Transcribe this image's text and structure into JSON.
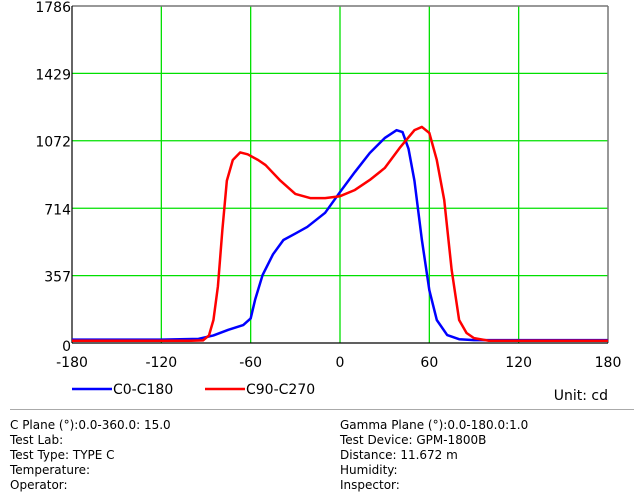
{
  "chart_data": {
    "type": "line",
    "title": "",
    "xlabel": "",
    "ylabel": "",
    "xlim": [
      -180,
      180
    ],
    "ylim": [
      0,
      1786
    ],
    "x_ticks": [
      -180,
      -120,
      -60,
      0,
      60,
      120,
      180
    ],
    "y_ticks": [
      0,
      357,
      714,
      1072,
      1429,
      1786
    ],
    "grid": true,
    "unit_label": "Unit: cd",
    "legend_position": "bottom-left",
    "series": [
      {
        "name": "C0-C180",
        "color": "#0000ff",
        "points": [
          [
            -180,
            18
          ],
          [
            -120,
            18
          ],
          [
            -95,
            22
          ],
          [
            -85,
            40
          ],
          [
            -75,
            70
          ],
          [
            -65,
            95
          ],
          [
            -60,
            130
          ],
          [
            -57,
            230
          ],
          [
            -52,
            360
          ],
          [
            -45,
            470
          ],
          [
            -38,
            546
          ],
          [
            -30,
            580
          ],
          [
            -22,
            615
          ],
          [
            -10,
            690
          ],
          [
            0,
            800
          ],
          [
            10,
            906
          ],
          [
            20,
            1007
          ],
          [
            30,
            1086
          ],
          [
            38,
            1128
          ],
          [
            42,
            1118
          ],
          [
            46,
            1030
          ],
          [
            50,
            860
          ],
          [
            55,
            546
          ],
          [
            60,
            280
          ],
          [
            65,
            122
          ],
          [
            72,
            42
          ],
          [
            80,
            20
          ],
          [
            90,
            15
          ],
          [
            180,
            15
          ]
        ]
      },
      {
        "name": "C90-C270",
        "color": "#ff0000",
        "points": [
          [
            -180,
            12
          ],
          [
            -100,
            12
          ],
          [
            -92,
            14
          ],
          [
            -88,
            40
          ],
          [
            -85,
            122
          ],
          [
            -82,
            300
          ],
          [
            -79,
            600
          ],
          [
            -76,
            860
          ],
          [
            -72,
            970
          ],
          [
            -67,
            1010
          ],
          [
            -62,
            1000
          ],
          [
            -55,
            970
          ],
          [
            -50,
            943
          ],
          [
            -40,
            860
          ],
          [
            -30,
            790
          ],
          [
            -20,
            768
          ],
          [
            -10,
            768
          ],
          [
            0,
            778
          ],
          [
            10,
            811
          ],
          [
            20,
            864
          ],
          [
            30,
            927
          ],
          [
            40,
            1033
          ],
          [
            50,
            1128
          ],
          [
            55,
            1145
          ],
          [
            60,
            1113
          ],
          [
            65,
            970
          ],
          [
            70,
            758
          ],
          [
            75,
            387
          ],
          [
            80,
            122
          ],
          [
            85,
            53
          ],
          [
            90,
            26
          ],
          [
            100,
            12
          ],
          [
            180,
            12
          ]
        ]
      }
    ]
  },
  "info": {
    "c_plane": "C Plane (°):0.0-360.0: 15.0",
    "gamma_plane": "Gamma Plane (°):0.0-180.0:1.0",
    "test_lab": "Test Lab:",
    "test_device": "Test Device: GPM-1800B",
    "test_type": "Test Type: TYPE C",
    "distance": "Distance: 11.672 m",
    "temperature": "Temperature:",
    "humidity": "Humidity:",
    "operator": "Operator:",
    "inspector": "Inspector:"
  }
}
